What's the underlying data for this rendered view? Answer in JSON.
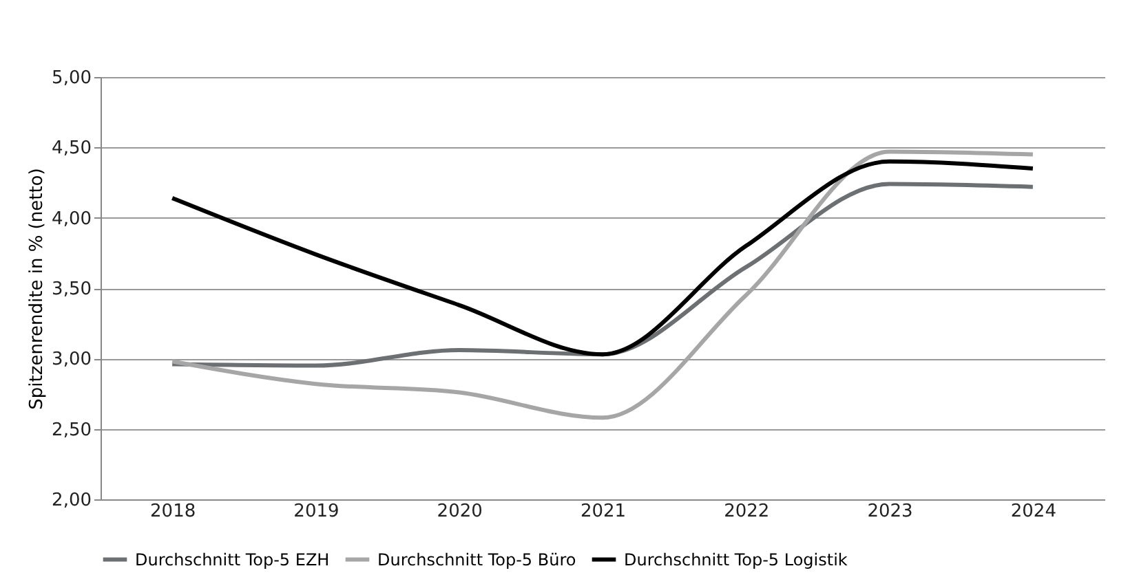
{
  "chart_data": {
    "type": "line",
    "ylabel": "Spitzenrendite in % (netto)",
    "categories": [
      "2018",
      "2019",
      "2020",
      "2021",
      "2022",
      "2023",
      "2024"
    ],
    "series": [
      {
        "name": "Durchschnitt Top-5 EZH",
        "color": "#6d7073",
        "values": [
          2.96,
          2.95,
          3.06,
          3.03,
          3.65,
          4.24,
          4.22
        ]
      },
      {
        "name": "Durchschnitt Top-5 Büro",
        "color": "#a6a6a6",
        "values": [
          2.98,
          2.82,
          2.76,
          2.58,
          3.45,
          4.47,
          4.45
        ]
      },
      {
        "name": "Durchschnitt Top-5 Logistik",
        "color": "#000000",
        "values": [
          4.14,
          3.74,
          3.38,
          3.03,
          3.8,
          4.4,
          4.35
        ]
      }
    ],
    "ylim": [
      2,
      5
    ],
    "yticks": [
      {
        "value": 2,
        "label": "2,00"
      },
      {
        "value": 2.5,
        "label": "2,50"
      },
      {
        "value": 3,
        "label": "3,00"
      },
      {
        "value": 3.5,
        "label": "3,50"
      },
      {
        "value": 4,
        "label": "4,00"
      },
      {
        "value": 4.5,
        "label": "4,50"
      },
      {
        "value": 5,
        "label": "5,00"
      }
    ],
    "grid": "y",
    "legend": "bottom",
    "marker": "none",
    "line_style": "solid"
  }
}
